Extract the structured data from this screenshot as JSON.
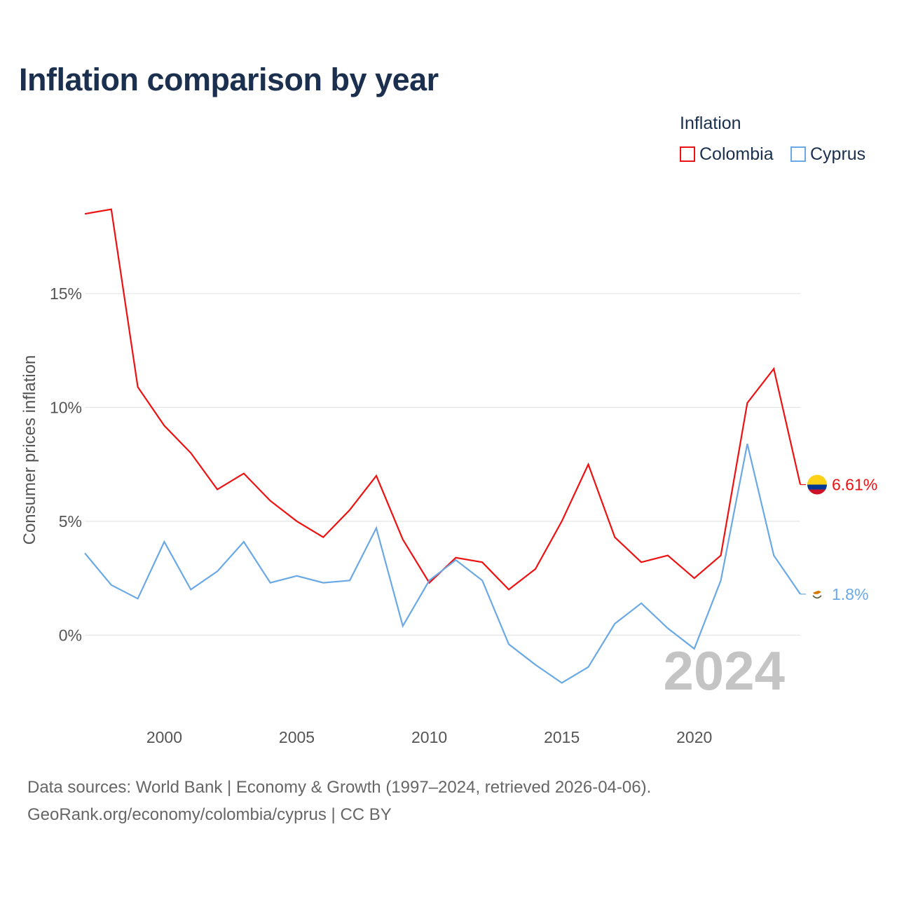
{
  "title": "Inflation comparison by year",
  "legend": {
    "title": "Inflation",
    "items": [
      {
        "label": "Colombia",
        "color": "#ee1111"
      },
      {
        "label": "Cyprus",
        "color": "#6aa9e6"
      }
    ]
  },
  "footer": {
    "line1": "Data sources: World Bank | Economy & Growth (1997–2024, retrieved 2026-04-06).",
    "line2": "GeoRank.org/economy/colombia/cyprus | CC BY"
  },
  "chart_data": {
    "type": "line",
    "title": "Inflation comparison by year",
    "xlabel": "",
    "ylabel": "Consumer prices inflation",
    "x": [
      1997,
      1998,
      1999,
      2000,
      2001,
      2002,
      2003,
      2004,
      2005,
      2006,
      2007,
      2008,
      2009,
      2010,
      2011,
      2012,
      2013,
      2014,
      2015,
      2016,
      2017,
      2018,
      2019,
      2020,
      2021,
      2022,
      2023,
      2024
    ],
    "xticks": [
      2000,
      2005,
      2010,
      2015,
      2020
    ],
    "yticks": [
      0,
      5,
      10,
      15
    ],
    "ytick_labels": [
      "0%",
      "5%",
      "10%",
      "15%"
    ],
    "xlim": [
      1997,
      2024
    ],
    "ylim": [
      -3.5,
      20.2
    ],
    "grid": true,
    "legend_position": "top-right",
    "year_stamp": "2024",
    "series": [
      {
        "name": "Colombia",
        "color": "#ee1111",
        "end_label": "6.61%",
        "flag": "colombia-flag",
        "values": [
          18.5,
          18.7,
          10.9,
          9.2,
          8.0,
          6.4,
          7.1,
          5.9,
          5.0,
          4.3,
          5.5,
          7.0,
          4.2,
          2.3,
          3.4,
          3.2,
          2.0,
          2.9,
          5.0,
          7.5,
          4.3,
          3.2,
          3.5,
          2.5,
          3.5,
          10.2,
          11.7,
          6.61
        ]
      },
      {
        "name": "Cyprus",
        "color": "#6aa9e6",
        "end_label": "1.8%",
        "flag": "cyprus-flag",
        "values": [
          3.6,
          2.2,
          1.6,
          4.1,
          2.0,
          2.8,
          4.1,
          2.3,
          2.6,
          2.3,
          2.4,
          4.7,
          0.4,
          2.4,
          3.3,
          2.4,
          -0.4,
          -1.3,
          -2.1,
          -1.4,
          0.5,
          1.4,
          0.3,
          -0.6,
          2.4,
          8.4,
          3.5,
          1.8
        ]
      }
    ]
  }
}
